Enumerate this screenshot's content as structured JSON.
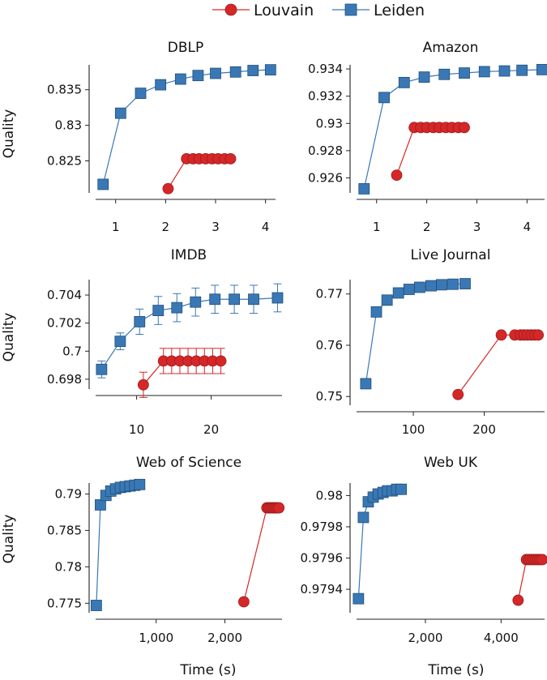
{
  "legend": {
    "louvain_label": "Louvain",
    "leiden_label": "Leiden"
  },
  "colors": {
    "louvain": "#d62728",
    "louvain_edge": "#9b1c1c",
    "leiden": "#3a78b5",
    "leiden_edge": "#1f4e7a"
  },
  "chart_data": [
    {
      "type": "line",
      "title": "DBLP",
      "xlabel": "",
      "ylabel": "Quality",
      "xlim": [
        0.6,
        4.2
      ],
      "ylim": [
        0.8205,
        0.8385
      ],
      "xticks": [
        1,
        2,
        3,
        4
      ],
      "xtick_labels": [
        "1",
        "2",
        "3",
        "4"
      ],
      "yticks": [
        0.825,
        0.83,
        0.835
      ],
      "ytick_labels": [
        "0.825",
        "0.83",
        "0.835"
      ],
      "series": [
        {
          "name": "Leiden",
          "x": [
            0.75,
            1.1,
            1.5,
            1.9,
            2.3,
            2.65,
            3.0,
            3.4,
            3.75,
            4.1
          ],
          "y": [
            0.8217,
            0.8317,
            0.8345,
            0.8357,
            0.8365,
            0.837,
            0.8373,
            0.8375,
            0.8377,
            0.8378
          ]
        },
        {
          "name": "Louvain",
          "x": [
            2.05,
            2.42,
            2.55,
            2.67,
            2.8,
            2.93,
            3.05,
            3.18,
            3.3
          ],
          "y": [
            0.8211,
            0.8253,
            0.8253,
            0.8253,
            0.8253,
            0.8253,
            0.8253,
            0.8253,
            0.8253
          ]
        }
      ]
    },
    {
      "type": "line",
      "title": "Amazon",
      "xlabel": "",
      "ylabel": "",
      "xlim": [
        0.6,
        4.35
      ],
      "ylim": [
        0.9249,
        0.9343
      ],
      "xticks": [
        1,
        2,
        3,
        4
      ],
      "xtick_labels": [
        "1",
        "2",
        "3",
        "4"
      ],
      "yticks": [
        0.926,
        0.928,
        0.93,
        0.932,
        0.934
      ],
      "ytick_labels": [
        "0.926",
        "0.928",
        "0.93",
        "0.932",
        "0.934"
      ],
      "series": [
        {
          "name": "Leiden",
          "x": [
            0.75,
            1.15,
            1.55,
            1.95,
            2.35,
            2.75,
            3.15,
            3.55,
            3.9,
            4.3
          ],
          "y": [
            0.9252,
            0.9319,
            0.933,
            0.9334,
            0.9336,
            0.9337,
            0.9338,
            0.93385,
            0.9339,
            0.93395
          ]
        },
        {
          "name": "Louvain",
          "x": [
            1.4,
            1.75,
            1.88,
            2.0,
            2.13,
            2.25,
            2.38,
            2.5,
            2.63,
            2.75
          ],
          "y": [
            0.9262,
            0.9297,
            0.9297,
            0.9297,
            0.9297,
            0.9297,
            0.9297,
            0.9297,
            0.9297,
            0.9297
          ]
        }
      ]
    },
    {
      "type": "line",
      "title": "IMDB",
      "xlabel": "",
      "ylabel": "Quality",
      "xlim": [
        4.5,
        29.5
      ],
      "ylim": [
        0.6973,
        0.7051
      ],
      "xticks": [
        10,
        20
      ],
      "xtick_labels": [
        "10",
        "20"
      ],
      "yticks": [
        0.698,
        0.7,
        0.702,
        0.704
      ],
      "ytick_labels": [
        "0.698",
        "0.7",
        "0.702",
        "0.704"
      ],
      "series": [
        {
          "name": "Leiden",
          "x": [
            5.3,
            7.8,
            10.4,
            12.9,
            15.4,
            17.9,
            20.5,
            23.1,
            25.7,
            28.9
          ],
          "y": [
            0.6987,
            0.7007,
            0.7021,
            0.7029,
            0.7031,
            0.7035,
            0.7037,
            0.7037,
            0.7037,
            0.7038
          ],
          "err": [
            0.0006,
            0.0006,
            0.0009,
            0.001,
            0.001,
            0.001,
            0.001,
            0.001,
            0.001,
            0.001
          ]
        },
        {
          "name": "Louvain",
          "x": [
            10.9,
            13.6,
            14.7,
            15.8,
            16.9,
            18.0,
            19.1,
            20.2,
            21.3
          ],
          "y": [
            0.6976,
            0.6993,
            0.6993,
            0.6993,
            0.6993,
            0.6993,
            0.6993,
            0.6993,
            0.6993
          ],
          "err": [
            0.0009,
            0.0009,
            0.0009,
            0.0009,
            0.0009,
            0.0009,
            0.0009,
            0.0009,
            0.0009
          ]
        }
      ]
    },
    {
      "type": "line",
      "title": "Live Journal",
      "xlabel": "",
      "ylabel": "",
      "xlim": [
        20,
        285
      ],
      "ylim": [
        0.7483,
        0.7728
      ],
      "xticks": [
        100,
        200
      ],
      "xtick_labels": [
        "100",
        "200"
      ],
      "yticks": [
        0.75,
        0.76,
        0.77
      ],
      "ytick_labels": [
        "0.75",
        "0.76",
        "0.77"
      ],
      "series": [
        {
          "name": "Leiden",
          "x": [
            33,
            48,
            63,
            79,
            94,
            109,
            125,
            140,
            156,
            173
          ],
          "y": [
            0.7525,
            0.7665,
            0.7688,
            0.7702,
            0.7709,
            0.7713,
            0.7716,
            0.7718,
            0.7719,
            0.772
          ]
        },
        {
          "name": "Louvain",
          "x": [
            163,
            224,
            243,
            251,
            256,
            261,
            266,
            271,
            276
          ],
          "y": [
            0.7504,
            0.762,
            0.762,
            0.762,
            0.762,
            0.762,
            0.762,
            0.762,
            0.762
          ],
          "err": [
            0.0007,
            0.0007,
            0.0003,
            0.0003,
            0.0003,
            0.0003,
            0.0003,
            0.0003,
            0.0003
          ]
        }
      ]
    },
    {
      "type": "line",
      "title": "Web of Science",
      "xlabel": "Time (s)",
      "ylabel": "Quality",
      "xlim": [
        120,
        2830
      ],
      "ylim": [
        0.7737,
        0.7915
      ],
      "xticks": [
        1000,
        2000
      ],
      "xtick_labels": [
        "1,000",
        "2,000"
      ],
      "yticks": [
        0.775,
        0.78,
        0.785,
        0.79
      ],
      "ytick_labels": [
        "0.775",
        "0.78",
        "0.785",
        "0.79"
      ],
      "series": [
        {
          "name": "Leiden",
          "x": [
            130,
            190,
            270,
            340,
            410,
            480,
            550,
            620,
            690,
            760
          ],
          "y": [
            0.7747,
            0.7885,
            0.7898,
            0.7904,
            0.7907,
            0.7909,
            0.791,
            0.7911,
            0.7912,
            0.7913
          ]
        },
        {
          "name": "Louvain",
          "x": [
            2275,
            2610,
            2635,
            2660,
            2685,
            2710,
            2735,
            2760,
            2785
          ],
          "y": [
            0.7752,
            0.7881,
            0.7881,
            0.7881,
            0.7881,
            0.7881,
            0.7881,
            0.7881,
            0.7881
          ],
          "err": [
            0.0003,
            0.0002,
            0.0002,
            0.0002,
            0.0002,
            0.0002,
            0.0002,
            0.0002,
            0.0002
          ]
        }
      ]
    },
    {
      "type": "line",
      "title": "Web UK",
      "xlabel": "Time (s)",
      "ylabel": "",
      "xlim": [
        180,
        5150
      ],
      "ylim": [
        0.97925,
        0.98008
      ],
      "xticks": [
        2000,
        4000
      ],
      "xtick_labels": [
        "2,000",
        "4,000"
      ],
      "yticks": [
        0.9794,
        0.9796,
        0.9798,
        0.98
      ],
      "ytick_labels": [
        "0.9794",
        "0.9796",
        "0.9798",
        "0.98"
      ],
      "series": [
        {
          "name": "Leiden",
          "x": [
            230,
            360,
            490,
            620,
            750,
            880,
            1000,
            1120,
            1240,
            1360
          ],
          "y": [
            0.97934,
            0.97986,
            0.97996,
            0.97999,
            0.98001,
            0.98002,
            0.98003,
            0.98003,
            0.98004,
            0.98004
          ]
        },
        {
          "name": "Louvain",
          "x": [
            4450,
            4670,
            4730,
            4790,
            4850,
            4910,
            4970,
            5030,
            5090
          ],
          "y": [
            0.97933,
            0.97959,
            0.97959,
            0.97959,
            0.97959,
            0.97959,
            0.97959,
            0.97959,
            0.97959
          ],
          "err": [
            2e-05,
            1e-05,
            1e-05,
            1e-05,
            1e-05,
            1e-05,
            1e-05,
            1e-05,
            1e-05
          ]
        }
      ]
    }
  ]
}
